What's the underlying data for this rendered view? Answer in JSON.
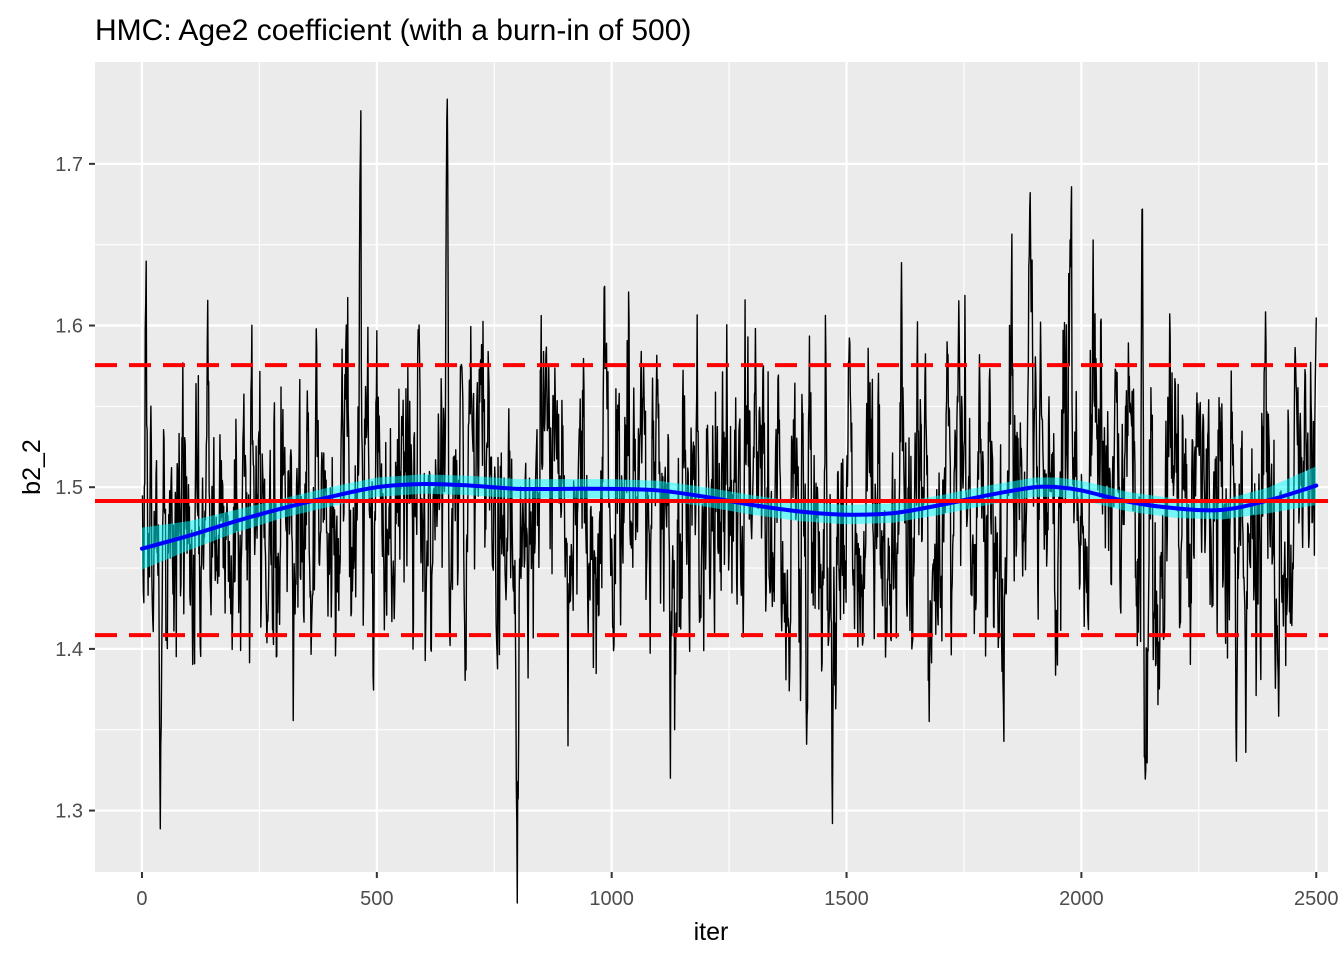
{
  "chart_data": {
    "type": "line",
    "title": "HMC: Age2 coefficient (with a burn-in of 500)",
    "xlabel": "iter",
    "ylabel": "b2_2",
    "xlim": [
      -100,
      2525
    ],
    "ylim": [
      1.262,
      1.763
    ],
    "x_ticks": [
      0,
      500,
      1000,
      1500,
      2000,
      2500
    ],
    "y_ticks": [
      1.3,
      1.4,
      1.5,
      1.6,
      1.7
    ],
    "x_tick_labels": [
      "0",
      "500",
      "1000",
      "1500",
      "2000",
      "2500"
    ],
    "y_tick_labels": [
      "1.3",
      "1.4",
      "1.5",
      "1.6",
      "1.7"
    ],
    "grid": true,
    "background": "#ebebeb",
    "trace": {
      "n": 2500,
      "color": "#000000",
      "mean": 1.4915,
      "sd": 0.051,
      "notable_points": [
        {
          "x": 8,
          "y": 1.614
        },
        {
          "x": 40,
          "y": 1.34
        },
        {
          "x": 465,
          "y": 1.707
        },
        {
          "x": 650,
          "y": 1.74
        },
        {
          "x": 800,
          "y": 1.318
        },
        {
          "x": 1125,
          "y": 1.32
        },
        {
          "x": 1470,
          "y": 1.292
        },
        {
          "x": 1890,
          "y": 1.672
        },
        {
          "x": 2130,
          "y": 1.672
        },
        {
          "x": 2350,
          "y": 1.336
        },
        {
          "x": 2500,
          "y": 1.605
        }
      ]
    },
    "smooth": {
      "color": "#0000ff",
      "band_color": "#00ffff",
      "x": [
        0,
        100,
        200,
        300,
        400,
        500,
        600,
        700,
        800,
        900,
        1000,
        1100,
        1200,
        1300,
        1400,
        1500,
        1600,
        1700,
        1800,
        1900,
        1950,
        2000,
        2100,
        2200,
        2300,
        2400,
        2500
      ],
      "y": [
        1.462,
        1.47,
        1.479,
        1.487,
        1.494,
        1.5,
        1.502,
        1.501,
        1.499,
        1.499,
        1.499,
        1.498,
        1.494,
        1.489,
        1.485,
        1.483,
        1.484,
        1.489,
        1.495,
        1.5,
        1.5,
        1.498,
        1.491,
        1.487,
        1.486,
        1.492,
        1.501
      ],
      "band_halfwidth": [
        0.013,
        0.009,
        0.007,
        0.006,
        0.006,
        0.006,
        0.006,
        0.006,
        0.006,
        0.006,
        0.006,
        0.006,
        0.006,
        0.006,
        0.006,
        0.006,
        0.006,
        0.006,
        0.006,
        0.006,
        0.006,
        0.006,
        0.006,
        0.006,
        0.006,
        0.008,
        0.012
      ]
    },
    "hlines": [
      {
        "y": 1.4915,
        "style": "solid",
        "color": "#ff0000"
      },
      {
        "y": 1.5755,
        "style": "dashed",
        "color": "#ff0000"
      },
      {
        "y": 1.4085,
        "style": "dashed",
        "color": "#ff0000"
      }
    ]
  }
}
